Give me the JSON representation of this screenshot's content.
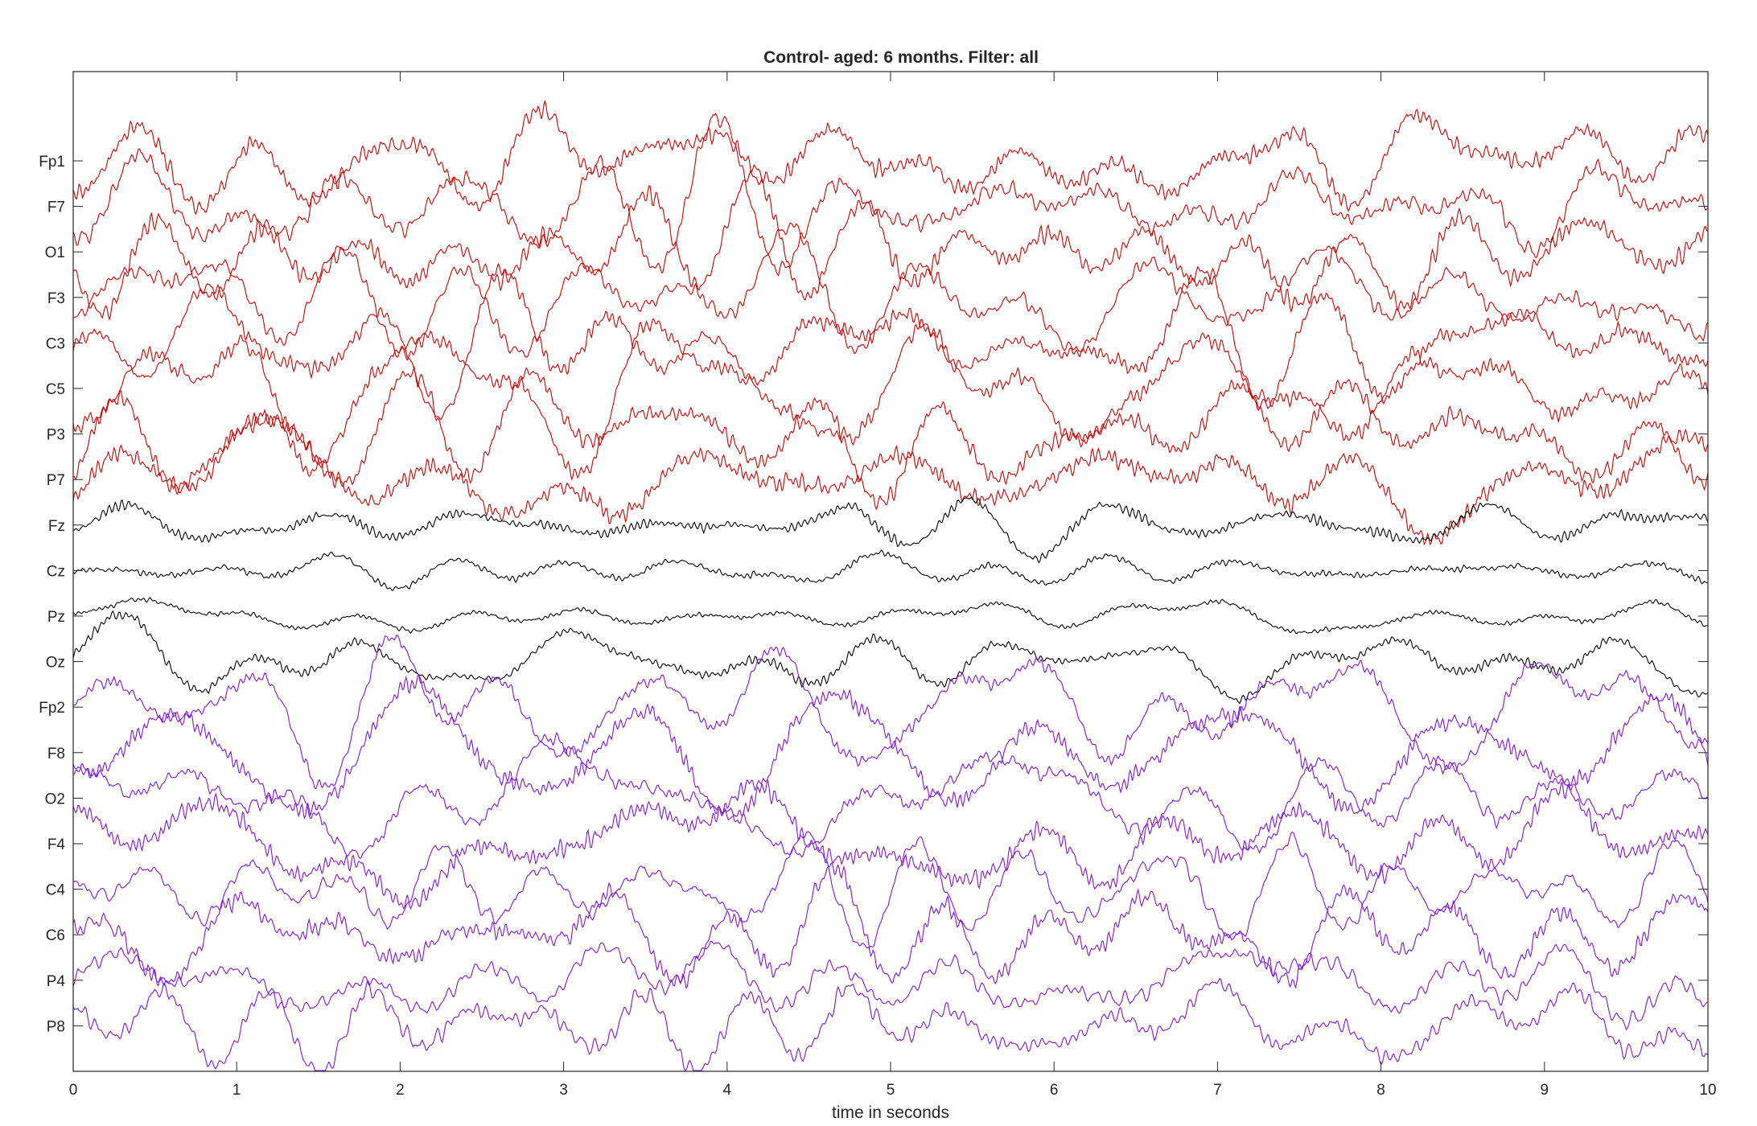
{
  "chart_data": {
    "type": "line",
    "title": "Control- aged: 6 months. Filter: all",
    "xlabel": "time in seconds",
    "ylabel": "",
    "xlim": [
      0,
      10
    ],
    "x_ticks": [
      "0",
      "1",
      "2",
      "3",
      "4",
      "5",
      "6",
      "7",
      "8",
      "9",
      "10"
    ],
    "grid": false,
    "legend": "none",
    "colors": {
      "left": "#cc0000",
      "midline": "#000000",
      "right": "#7f14e0",
      "axis": "#262626"
    },
    "channels": [
      {
        "name": "Fp1",
        "group": "left"
      },
      {
        "name": "F7",
        "group": "left"
      },
      {
        "name": "O1",
        "group": "left"
      },
      {
        "name": "F3",
        "group": "left"
      },
      {
        "name": "C3",
        "group": "left"
      },
      {
        "name": "C5",
        "group": "left"
      },
      {
        "name": "P3",
        "group": "left"
      },
      {
        "name": "P7",
        "group": "left"
      },
      {
        "name": "Fz",
        "group": "midline"
      },
      {
        "name": "Cz",
        "group": "midline"
      },
      {
        "name": "Pz",
        "group": "midline"
      },
      {
        "name": "Oz",
        "group": "midline"
      },
      {
        "name": "Fp2",
        "group": "right"
      },
      {
        "name": "F8",
        "group": "right"
      },
      {
        "name": "O2",
        "group": "right"
      },
      {
        "name": "F4",
        "group": "right"
      },
      {
        "name": "C4",
        "group": "right"
      },
      {
        "name": "C6",
        "group": "right"
      },
      {
        "name": "P4",
        "group": "right"
      },
      {
        "name": "P8",
        "group": "right"
      }
    ]
  }
}
